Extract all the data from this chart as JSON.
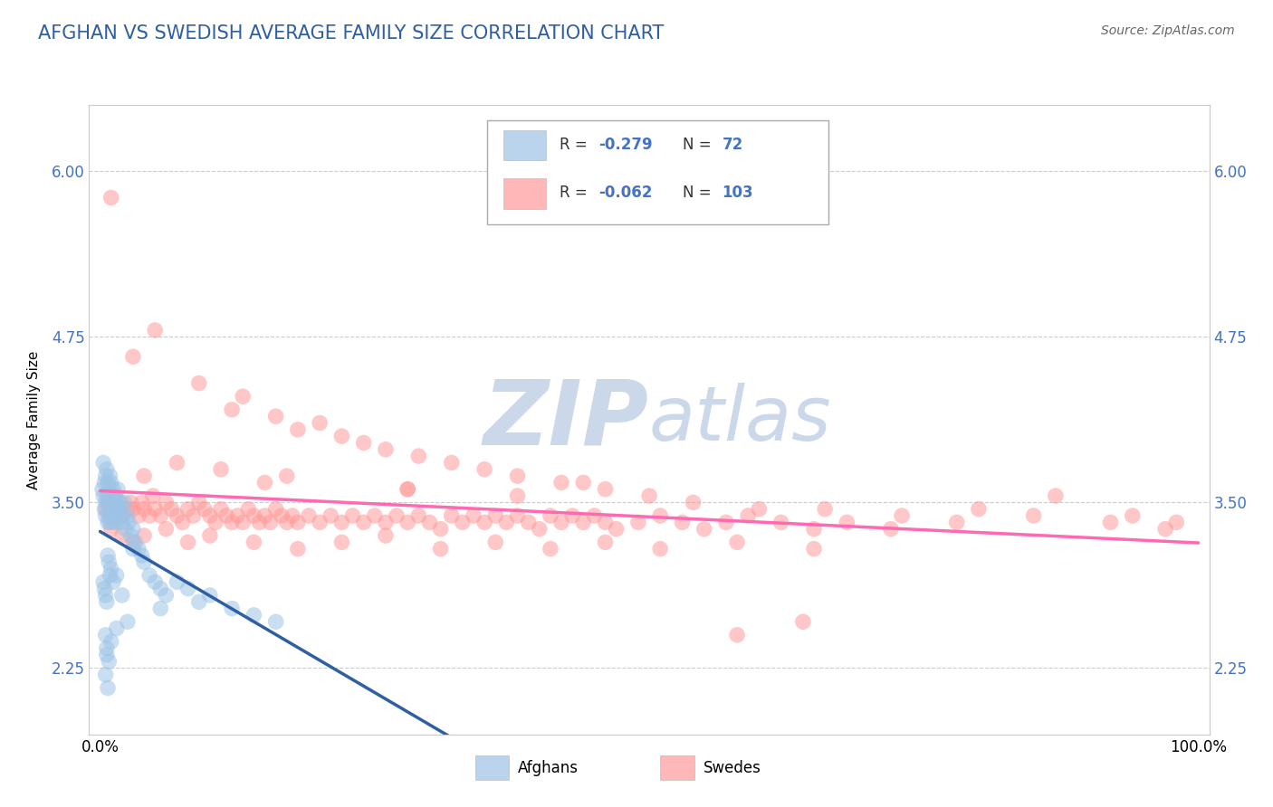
{
  "title": "AFGHAN VS SWEDISH AVERAGE FAMILY SIZE CORRELATION CHART",
  "source": "Source: ZipAtlas.com",
  "ylabel": "Average Family Size",
  "y_ticks": [
    2.25,
    3.5,
    4.75,
    6.0
  ],
  "y_ticks_labels": [
    "2.25",
    "3.50",
    "4.75",
    "6.00"
  ],
  "y_tick_color": "#4472C4",
  "ylim": [
    1.75,
    6.5
  ],
  "xlim": [
    -0.01,
    1.01
  ],
  "afghans_color": "#9DC3E6",
  "swedes_color": "#FF9999",
  "afghans_line_color": "#2E5FA3",
  "swedes_line_color": "#FF69B4",
  "dashed_line_color": "#AAAACC",
  "watermark_color": "#CBD8EA",
  "title_color": "#2E5FA3",
  "title_fontsize": 15,
  "afghans_x": [
    0.002,
    0.003,
    0.003,
    0.004,
    0.004,
    0.005,
    0.005,
    0.005,
    0.006,
    0.006,
    0.007,
    0.007,
    0.007,
    0.008,
    0.008,
    0.008,
    0.009,
    0.009,
    0.009,
    0.01,
    0.01,
    0.01,
    0.011,
    0.011,
    0.012,
    0.012,
    0.013,
    0.013,
    0.014,
    0.014,
    0.015,
    0.015,
    0.016,
    0.016,
    0.017,
    0.018,
    0.019,
    0.02,
    0.021,
    0.022,
    0.023,
    0.025,
    0.026,
    0.028,
    0.03,
    0.032,
    0.035,
    0.038,
    0.04,
    0.045,
    0.05,
    0.055,
    0.06,
    0.07,
    0.08,
    0.09,
    0.1,
    0.12,
    0.14,
    0.16,
    0.003,
    0.004,
    0.005,
    0.006,
    0.007,
    0.008,
    0.009,
    0.01,
    0.012,
    0.015,
    0.02,
    0.03
  ],
  "afghans_y": [
    3.6,
    3.8,
    3.55,
    3.65,
    3.45,
    3.5,
    3.7,
    3.4,
    3.55,
    3.75,
    3.5,
    3.65,
    3.35,
    3.45,
    3.6,
    3.4,
    3.55,
    3.7,
    3.35,
    3.5,
    3.45,
    3.65,
    3.4,
    3.55,
    3.35,
    3.6,
    3.45,
    3.5,
    3.4,
    3.55,
    3.35,
    3.5,
    3.45,
    3.6,
    3.4,
    3.5,
    3.45,
    3.35,
    3.4,
    3.5,
    3.3,
    3.4,
    3.35,
    3.25,
    3.3,
    3.2,
    3.15,
    3.1,
    3.05,
    2.95,
    2.9,
    2.85,
    2.8,
    2.9,
    2.85,
    2.75,
    2.8,
    2.7,
    2.65,
    2.6,
    2.9,
    2.85,
    2.8,
    2.75,
    3.1,
    3.05,
    2.95,
    3.0,
    2.9,
    2.95,
    2.8,
    3.15
  ],
  "afghans_outliers_x": [
    0.005,
    0.006,
    0.007,
    0.005,
    0.006,
    0.008,
    0.01,
    0.015,
    0.025,
    0.055
  ],
  "afghans_outliers_y": [
    2.2,
    2.35,
    2.1,
    2.5,
    2.4,
    2.3,
    2.45,
    2.55,
    2.6,
    2.7
  ],
  "swedes_x": [
    0.005,
    0.008,
    0.01,
    0.012,
    0.015,
    0.018,
    0.02,
    0.025,
    0.028,
    0.03,
    0.035,
    0.038,
    0.04,
    0.045,
    0.048,
    0.05,
    0.055,
    0.06,
    0.065,
    0.07,
    0.075,
    0.08,
    0.085,
    0.09,
    0.095,
    0.1,
    0.105,
    0.11,
    0.115,
    0.12,
    0.125,
    0.13,
    0.135,
    0.14,
    0.145,
    0.15,
    0.155,
    0.16,
    0.165,
    0.17,
    0.175,
    0.18,
    0.19,
    0.2,
    0.21,
    0.22,
    0.23,
    0.24,
    0.25,
    0.26,
    0.27,
    0.28,
    0.29,
    0.3,
    0.31,
    0.32,
    0.33,
    0.34,
    0.35,
    0.36,
    0.37,
    0.38,
    0.39,
    0.4,
    0.41,
    0.42,
    0.43,
    0.44,
    0.45,
    0.46,
    0.47,
    0.49,
    0.51,
    0.53,
    0.55,
    0.57,
    0.59,
    0.62,
    0.65,
    0.68,
    0.72,
    0.78,
    0.85,
    0.92,
    0.97,
    0.01,
    0.02,
    0.03,
    0.04,
    0.06,
    0.08,
    0.1,
    0.14,
    0.18,
    0.22,
    0.26,
    0.31,
    0.36,
    0.41,
    0.46,
    0.51,
    0.58,
    0.65
  ],
  "swedes_y": [
    3.45,
    3.5,
    3.4,
    3.55,
    3.45,
    3.5,
    3.4,
    3.45,
    3.5,
    3.45,
    3.4,
    3.5,
    3.45,
    3.4,
    3.55,
    3.45,
    3.4,
    3.5,
    3.45,
    3.4,
    3.35,
    3.45,
    3.4,
    3.5,
    3.45,
    3.4,
    3.35,
    3.45,
    3.4,
    3.35,
    3.4,
    3.35,
    3.45,
    3.4,
    3.35,
    3.4,
    3.35,
    3.45,
    3.4,
    3.35,
    3.4,
    3.35,
    3.4,
    3.35,
    3.4,
    3.35,
    3.4,
    3.35,
    3.4,
    3.35,
    3.4,
    3.35,
    3.4,
    3.35,
    3.3,
    3.4,
    3.35,
    3.4,
    3.35,
    3.4,
    3.35,
    3.4,
    3.35,
    3.3,
    3.4,
    3.35,
    3.4,
    3.35,
    3.4,
    3.35,
    3.3,
    3.35,
    3.4,
    3.35,
    3.3,
    3.35,
    3.4,
    3.35,
    3.3,
    3.35,
    3.3,
    3.35,
    3.4,
    3.35,
    3.3,
    3.3,
    3.25,
    3.2,
    3.25,
    3.3,
    3.2,
    3.25,
    3.2,
    3.15,
    3.2,
    3.25,
    3.15,
    3.2,
    3.15,
    3.2,
    3.15,
    3.2,
    3.15
  ],
  "swedes_outliers_x": [
    0.01,
    0.05,
    0.03,
    0.09,
    0.13,
    0.12,
    0.16,
    0.18,
    0.2,
    0.22,
    0.24,
    0.26,
    0.29,
    0.32,
    0.35,
    0.38,
    0.42,
    0.46,
    0.5,
    0.54,
    0.6,
    0.66,
    0.73,
    0.8,
    0.87,
    0.94,
    0.98,
    0.04,
    0.07,
    0.11,
    0.15,
    0.17,
    0.28,
    0.38,
    0.44,
    0.28,
    0.58,
    0.64
  ],
  "swedes_outliers_y": [
    5.8,
    4.8,
    4.6,
    4.4,
    4.3,
    4.2,
    4.15,
    4.05,
    4.1,
    4.0,
    3.95,
    3.9,
    3.85,
    3.8,
    3.75,
    3.7,
    3.65,
    3.6,
    3.55,
    3.5,
    3.45,
    3.45,
    3.4,
    3.45,
    3.55,
    3.4,
    3.35,
    3.7,
    3.8,
    3.75,
    3.65,
    3.7,
    3.6,
    3.55,
    3.65,
    3.6,
    2.5,
    2.6
  ]
}
